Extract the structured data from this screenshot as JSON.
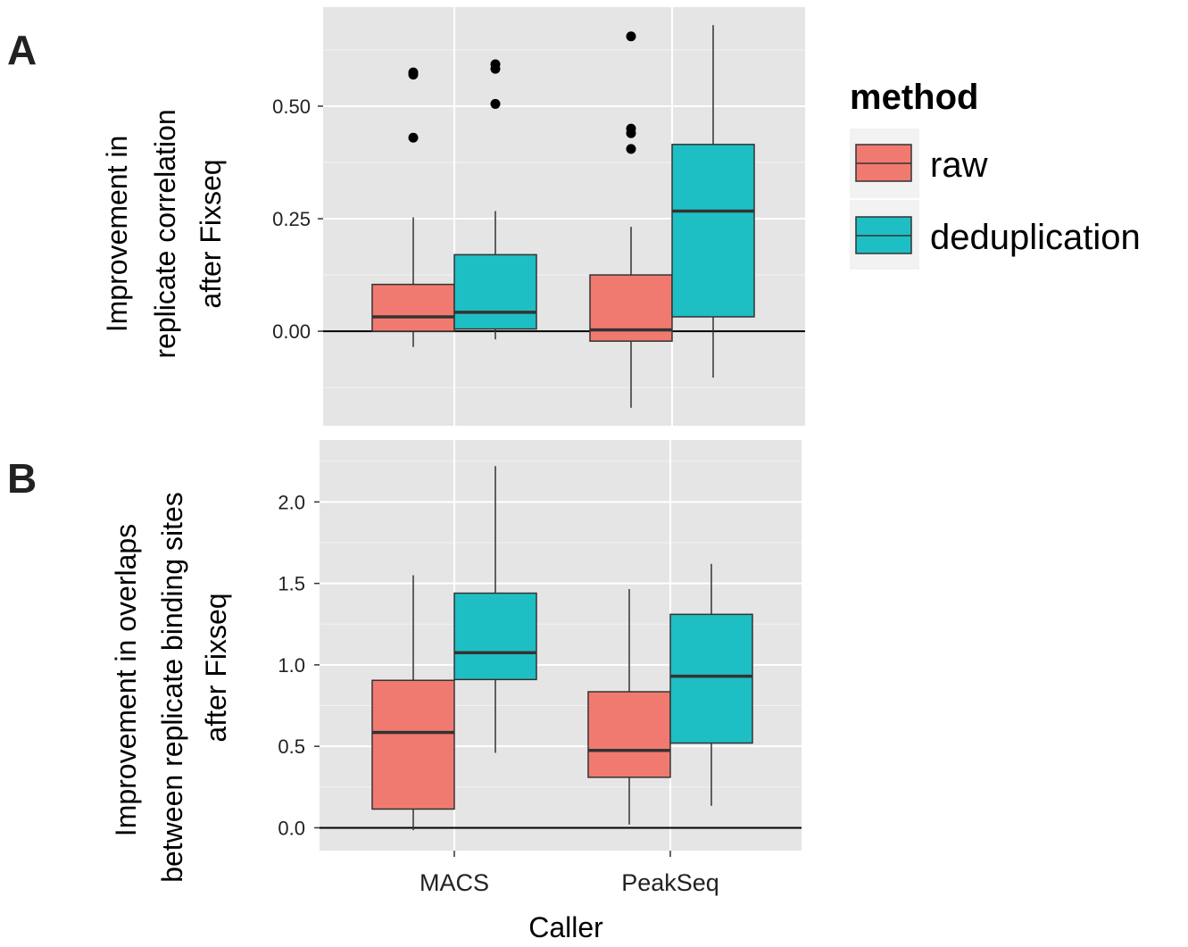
{
  "colors": {
    "raw": "#F17A70",
    "deduplication": "#1EBFC4",
    "panel_bg": "#E5E5E5",
    "grid": "#FFFFFF",
    "box_stroke": "#333333"
  },
  "legend": {
    "title": "method",
    "entries": [
      {
        "label": "raw",
        "color": "#F17A70"
      },
      {
        "label": "deduplication",
        "color": "#1EBFC4"
      }
    ],
    "position": "right"
  },
  "xlabel": "Caller",
  "chart_data": [
    {
      "type": "box",
      "panel": "A",
      "ylabel_lines": [
        "Improvement in",
        "replicate correlation",
        "after Fixseq"
      ],
      "categories": [
        "MACS",
        "PeakSeq"
      ],
      "ylim": [
        -0.21,
        0.72
      ],
      "yticks": [
        0.0,
        0.25,
        0.5
      ],
      "ytick_labels": [
        "0.00",
        "0.25",
        "0.50"
      ],
      "hline": 0,
      "grid": true,
      "series": [
        {
          "name": "raw",
          "boxes": [
            {
              "category": "MACS",
              "min": -0.035,
              "q1": 0.0,
              "median": 0.032,
              "q3": 0.104,
              "max": 0.253,
              "outliers": [
                0.43,
                0.57,
                0.575
              ]
            },
            {
              "category": "PeakSeq",
              "min": -0.17,
              "q1": -0.022,
              "median": 0.003,
              "q3": 0.125,
              "max": 0.232,
              "outliers": [
                0.405,
                0.44,
                0.45,
                0.655
              ]
            }
          ]
        },
        {
          "name": "deduplication",
          "boxes": [
            {
              "category": "MACS",
              "min": -0.018,
              "q1": 0.005,
              "median": 0.042,
              "q3": 0.17,
              "max": 0.267,
              "outliers": [
                0.505,
                0.583,
                0.593
              ]
            },
            {
              "category": "PeakSeq",
              "min": -0.103,
              "q1": 0.032,
              "median": 0.267,
              "q3": 0.415,
              "max": 0.68,
              "outliers": []
            }
          ]
        }
      ]
    },
    {
      "type": "box",
      "panel": "B",
      "ylabel_lines": [
        "Improvement in overlaps",
        "between replicate binding sites",
        "after Fixseq"
      ],
      "categories": [
        "MACS",
        "PeakSeq"
      ],
      "ylim": [
        -0.14,
        2.38
      ],
      "yticks": [
        0.0,
        0.5,
        1.0,
        1.5,
        2.0
      ],
      "ytick_labels": [
        "0.0",
        "0.5",
        "1.0",
        "1.5",
        "2.0"
      ],
      "hline": 0,
      "grid": true,
      "series": [
        {
          "name": "raw",
          "boxes": [
            {
              "category": "MACS",
              "min": -0.015,
              "q1": 0.115,
              "median": 0.585,
              "q3": 0.905,
              "max": 1.55,
              "outliers": []
            },
            {
              "category": "PeakSeq",
              "min": 0.02,
              "q1": 0.31,
              "median": 0.475,
              "q3": 0.835,
              "max": 1.465,
              "outliers": []
            }
          ]
        },
        {
          "name": "deduplication",
          "boxes": [
            {
              "category": "MACS",
              "min": 0.46,
              "q1": 0.91,
              "median": 1.075,
              "q3": 1.44,
              "max": 2.22,
              "outliers": []
            },
            {
              "category": "PeakSeq",
              "min": 0.135,
              "q1": 0.52,
              "median": 0.93,
              "q3": 1.31,
              "max": 1.62,
              "outliers": []
            }
          ]
        }
      ]
    }
  ]
}
